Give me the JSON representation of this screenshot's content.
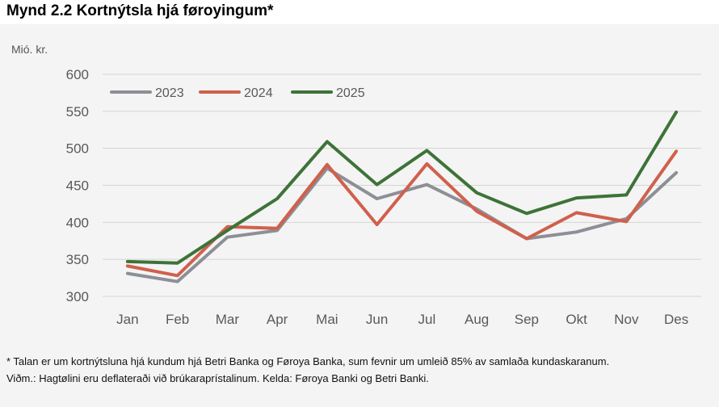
{
  "title": "Mynd 2.2 Kortnýtsla hjá føroyingum*",
  "footnotes": [
    "* Talan er um kortnýtsluna hjá kundum hjá Betri Banka og Føroya Banka, sum fevnir um umleið 85% av samlaða kundaskaranum.",
    "Viðm.: Hagtølini eru deflateraði við brúkaraprístalinum. Kelda: Føroya Banki og Betri Banki."
  ],
  "chart_data": {
    "type": "line",
    "title": "",
    "xlabel": "",
    "ylabel": "Mió. kr.",
    "ylim": [
      300,
      600
    ],
    "yticks": [
      300,
      350,
      400,
      450,
      500,
      550,
      600
    ],
    "grid": true,
    "legend_position": "top-left",
    "categories": [
      "Jan",
      "Feb",
      "Mar",
      "Apr",
      "Mai",
      "Jun",
      "Jul",
      "Aug",
      "Sep",
      "Okt",
      "Nov",
      "Des"
    ],
    "series": [
      {
        "name": "2023",
        "color": "#8c8f96",
        "values": [
          331,
          320,
          380,
          389,
          473,
          432,
          451,
          418,
          378,
          387,
          405,
          467
        ]
      },
      {
        "name": "2024",
        "color": "#d0604c",
        "values": [
          341,
          328,
          394,
          392,
          478,
          397,
          479,
          415,
          378,
          413,
          401,
          496
        ]
      },
      {
        "name": "2025",
        "color": "#3d7338",
        "values": [
          347,
          345,
          389,
          432,
          509,
          451,
          497,
          440,
          412,
          433,
          437,
          549
        ]
      }
    ]
  }
}
